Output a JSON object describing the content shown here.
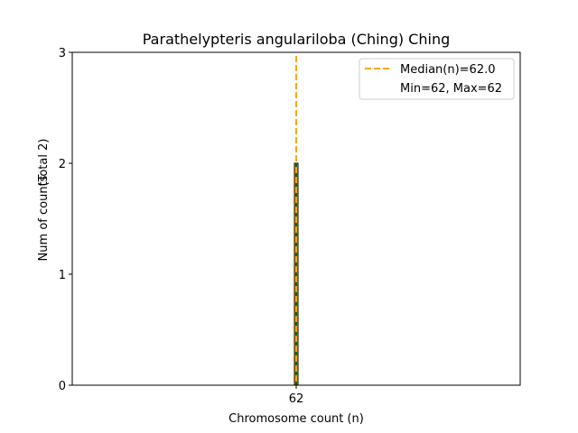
{
  "chart_data": {
    "type": "bar",
    "title": "Parathelypteris angulariloba (Ching) Ching",
    "xlabel": "Chromosome count (n)",
    "ylabel": "Num of counts",
    "ylabel_total": "(Total 2)",
    "categories": [
      "62"
    ],
    "values": [
      2
    ],
    "ylim": [
      0,
      3
    ],
    "yticks": [
      "0",
      "1",
      "2",
      "3"
    ],
    "xticks": [
      "62"
    ],
    "median": 62.0,
    "legend": {
      "placement": "top-right",
      "entries": [
        "Median(n)=62.0",
        "Min=62, Max=62"
      ]
    },
    "grid": false,
    "colors": {
      "bar_fill": "#ffa500",
      "bar_hatch": "#006400",
      "median_line": "#ffa500",
      "edge": "#000000"
    }
  }
}
